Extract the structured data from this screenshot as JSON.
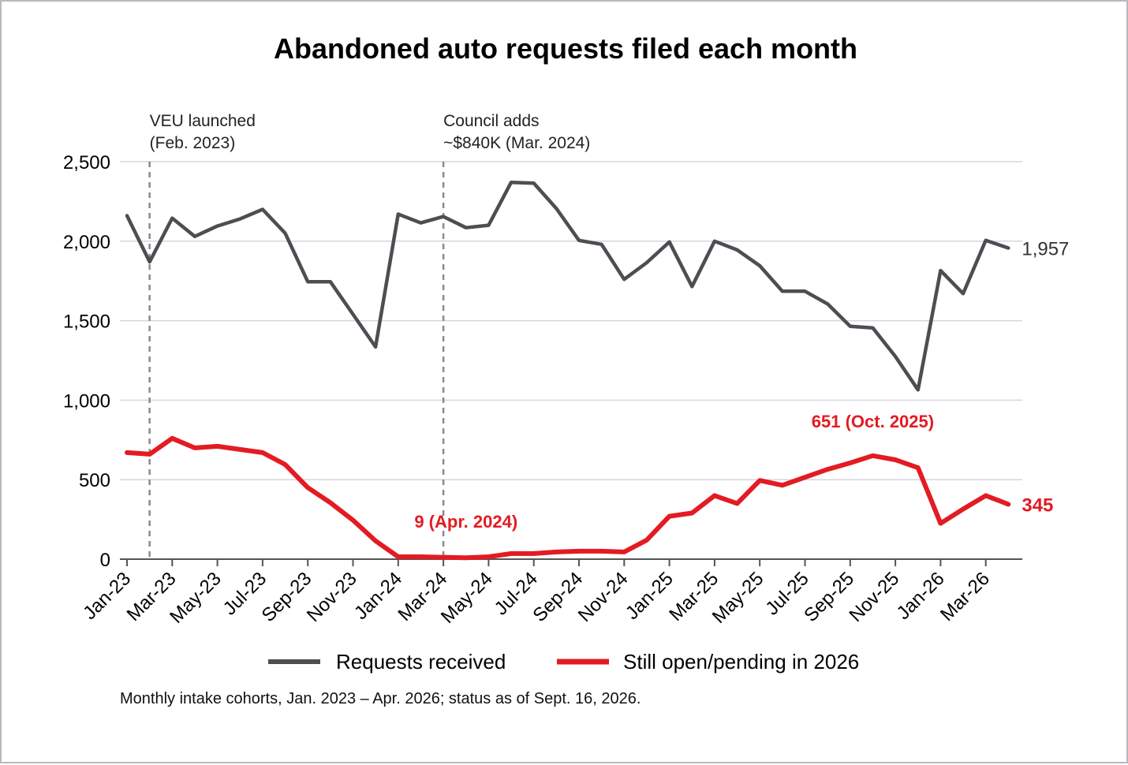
{
  "chart_data": {
    "type": "line",
    "title": "Abandoned auto requests filed each month",
    "xlabel": "",
    "ylabel": "",
    "ylim": [
      0,
      2500
    ],
    "yticks": [
      0,
      500,
      1000,
      1500,
      2000,
      2500
    ],
    "ytick_labels": [
      "0",
      "500",
      "1,000",
      "1,500",
      "2,000",
      "2,500"
    ],
    "x": [
      "Jan-23",
      "Feb-23",
      "Mar-23",
      "Apr-23",
      "May-23",
      "Jun-23",
      "Jul-23",
      "Aug-23",
      "Sep-23",
      "Oct-23",
      "Nov-23",
      "Dec-23",
      "Jan-24",
      "Feb-24",
      "Mar-24",
      "Apr-24",
      "May-24",
      "Jun-24",
      "Jul-24",
      "Aug-24",
      "Sep-24",
      "Oct-24",
      "Nov-24",
      "Dec-24",
      "Jan-25",
      "Feb-25",
      "Mar-25",
      "Apr-25",
      "May-25",
      "Jun-25",
      "Jul-25",
      "Aug-25",
      "Sep-25",
      "Oct-25",
      "Nov-25",
      "Dec-25",
      "Jan-26",
      "Feb-26",
      "Mar-26",
      "Apr-26"
    ],
    "xtick_labels": [
      "Jan-23",
      "Mar-23",
      "May-23",
      "Jul-23",
      "Sep-23",
      "Nov-23",
      "Jan-24",
      "Mar-24",
      "May-24",
      "Jul-24",
      "Sep-24",
      "Nov-24",
      "Jan-25",
      "Mar-25",
      "May-25",
      "Jul-25",
      "Sep-25",
      "Nov-25",
      "Jan-26",
      "Mar-26"
    ],
    "series": [
      {
        "name": "Requests received",
        "color": "#4d4d52",
        "values": [
          2160,
          1870,
          2145,
          2030,
          2095,
          2140,
          2200,
          2050,
          1745,
          1745,
          1540,
          1335,
          2170,
          2115,
          2155,
          2085,
          2100,
          2370,
          2365,
          2205,
          2005,
          1980,
          1760,
          1865,
          1995,
          1715,
          2000,
          1945,
          1845,
          1685,
          1685,
          1605,
          1465,
          1455,
          1275,
          1065,
          1815,
          1670,
          2005,
          1957
        ],
        "end_label": "1,957"
      },
      {
        "name": "Still open/pending in 2026",
        "color": "#e31b23",
        "values": [
          670,
          660,
          760,
          700,
          710,
          690,
          670,
          595,
          450,
          355,
          245,
          115,
          15,
          15,
          12,
          9,
          15,
          35,
          35,
          45,
          50,
          50,
          45,
          120,
          270,
          290,
          400,
          350,
          495,
          465,
          515,
          565,
          605,
          651,
          625,
          575,
          225,
          315,
          400,
          345
        ],
        "end_label": "345"
      }
    ],
    "annotations": [
      {
        "x": "Feb-23",
        "text": [
          "VEU launched",
          "(Feb. 2023)"
        ]
      },
      {
        "x": "Mar-24",
        "text": [
          "Council adds",
          "~$840K (Mar. 2024)"
        ]
      }
    ],
    "callouts": [
      {
        "series": 1,
        "x": "Apr-24",
        "value": 9,
        "text": "9 (Apr. 2024)"
      },
      {
        "series": 1,
        "x": "Oct-25",
        "value": 651,
        "text": "651 (Oct. 2025)"
      }
    ],
    "grid": true,
    "legend_position": "bottom",
    "note": "Monthly intake cohorts, Jan. 2023 – Apr. 2026; status as of Sept. 16, 2026."
  }
}
